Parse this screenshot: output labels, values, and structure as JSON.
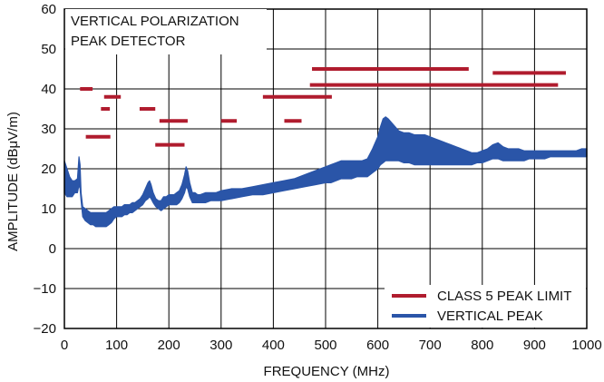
{
  "chart_data": {
    "type": "line",
    "title": "VERTICAL POLARIZATION\nPEAK DETECTOR",
    "xlabel": "FREQUENCY (MHz)",
    "ylabel": "AMPLITUDE (dBμV/m)",
    "xlim": [
      0,
      1000
    ],
    "ylim": [
      -20,
      60
    ],
    "x_ticks": [
      0,
      100,
      200,
      300,
      400,
      500,
      600,
      700,
      800,
      900,
      1000
    ],
    "y_ticks": [
      -20,
      -10,
      0,
      10,
      20,
      30,
      40,
      50,
      60
    ],
    "grid": true,
    "legend_position": "bottom-right",
    "colors": {
      "limit": "#b01c2e",
      "peak": "#2a55a8"
    },
    "limit_series": {
      "name": "CLASS 5 PEAK LIMIT",
      "segments": [
        {
          "x": [
            30,
            54
          ],
          "y": 40
        },
        {
          "x": [
            41,
            88
          ],
          "y": 28
        },
        {
          "x": [
            70,
            87
          ],
          "y": 35
        },
        {
          "x": [
            76,
            108
          ],
          "y": 38
        },
        {
          "x": [
            144,
            174
          ],
          "y": 35
        },
        {
          "x": [
            174,
            230
          ],
          "y": 26
        },
        {
          "x": [
            182,
            236
          ],
          "y": 32
        },
        {
          "x": [
            300,
            330
          ],
          "y": 32
        },
        {
          "x": [
            380,
            512
          ],
          "y": 38
        },
        {
          "x": [
            421,
            454
          ],
          "y": 32
        },
        {
          "x": [
            470,
            945
          ],
          "y": 41
        },
        {
          "x": [
            474,
            774
          ],
          "y": 45
        },
        {
          "x": [
            820,
            960
          ],
          "y": 44
        }
      ]
    },
    "series": [
      {
        "name": "VERTICAL PEAK",
        "x": [
          0,
          5,
          10,
          15,
          20,
          25,
          28,
          30,
          32,
          35,
          40,
          45,
          50,
          55,
          60,
          65,
          70,
          75,
          80,
          85,
          90,
          95,
          100,
          105,
          110,
          115,
          120,
          125,
          130,
          135,
          140,
          145,
          150,
          155,
          160,
          163,
          166,
          170,
          175,
          180,
          185,
          190,
          195,
          200,
          205,
          210,
          215,
          220,
          225,
          230,
          233,
          236,
          240,
          245,
          250,
          255,
          260,
          270,
          280,
          290,
          300,
          320,
          340,
          360,
          380,
          400,
          420,
          440,
          460,
          480,
          500,
          510,
          520,
          530,
          540,
          550,
          560,
          570,
          580,
          590,
          600,
          605,
          610,
          615,
          620,
          630,
          640,
          650,
          660,
          670,
          680,
          690,
          700,
          710,
          720,
          730,
          740,
          750,
          760,
          770,
          780,
          790,
          800,
          810,
          820,
          830,
          840,
          850,
          860,
          870,
          880,
          890,
          900,
          910,
          920,
          930,
          940,
          950,
          960,
          970,
          980,
          990,
          1000
        ],
        "y_low": [
          14,
          13,
          13,
          13,
          14,
          14,
          16,
          15,
          12,
          8,
          7,
          6.5,
          6,
          6,
          5.5,
          5.5,
          5.5,
          5.5,
          5.5,
          6,
          6.5,
          7.5,
          8,
          8,
          8,
          8.5,
          8.5,
          9,
          9,
          9.5,
          10,
          10.5,
          11,
          12,
          12.5,
          13,
          12.5,
          11.5,
          10.5,
          10,
          9.5,
          10,
          10.5,
          11,
          11,
          11,
          11,
          11.5,
          12.5,
          14,
          15.5,
          15,
          13,
          11.5,
          11.5,
          11.5,
          11.5,
          11.5,
          12,
          12,
          12,
          12.5,
          13,
          13.5,
          13.5,
          14,
          14.5,
          15,
          15.5,
          16,
          16.5,
          16.5,
          17,
          17.5,
          17.5,
          17.5,
          18,
          18,
          18,
          19,
          20,
          21,
          21.5,
          22,
          22,
          22,
          22,
          21.5,
          21.5,
          21,
          21,
          21,
          21,
          21,
          21,
          21,
          21,
          21,
          21,
          21,
          21,
          21.5,
          21.5,
          22,
          22.5,
          22.5,
          22,
          22,
          22,
          22,
          22,
          22.5,
          22.5,
          22.5,
          22.5,
          23,
          23,
          23,
          23,
          23,
          23,
          23,
          23
        ],
        "y_high": [
          22,
          20,
          18,
          17,
          17,
          17.5,
          23,
          21,
          14,
          10.5,
          10,
          9.5,
          9,
          9,
          9,
          9,
          9,
          9,
          9,
          9.5,
          10,
          10.5,
          10.5,
          10.5,
          10.5,
          11,
          11,
          11,
          11.5,
          11.5,
          12,
          12.5,
          13.5,
          15,
          16.5,
          17,
          16,
          14,
          12.5,
          12,
          12,
          13,
          13,
          13.5,
          13.5,
          13.5,
          14,
          14.5,
          16,
          18.5,
          20.5,
          19.5,
          16.5,
          14,
          14,
          13.5,
          13.5,
          14,
          14,
          14,
          14.5,
          15,
          15,
          15.5,
          16,
          16.5,
          17,
          17.5,
          18.5,
          19.5,
          20.5,
          21,
          21.5,
          22,
          22,
          22,
          22,
          22,
          22.5,
          25,
          28,
          30.5,
          32.5,
          33,
          32.5,
          31,
          29.5,
          29,
          29,
          28.5,
          28.5,
          28.5,
          28,
          27.5,
          27,
          26.5,
          26,
          25.5,
          25,
          24.5,
          24,
          24,
          24.5,
          25,
          26,
          26.5,
          25.5,
          25,
          25,
          25,
          24.5,
          24.5,
          24.5,
          24.5,
          24.5,
          24.5,
          24.5,
          24.5,
          24.5,
          24.5,
          24.5,
          25,
          25
        ]
      }
    ]
  }
}
